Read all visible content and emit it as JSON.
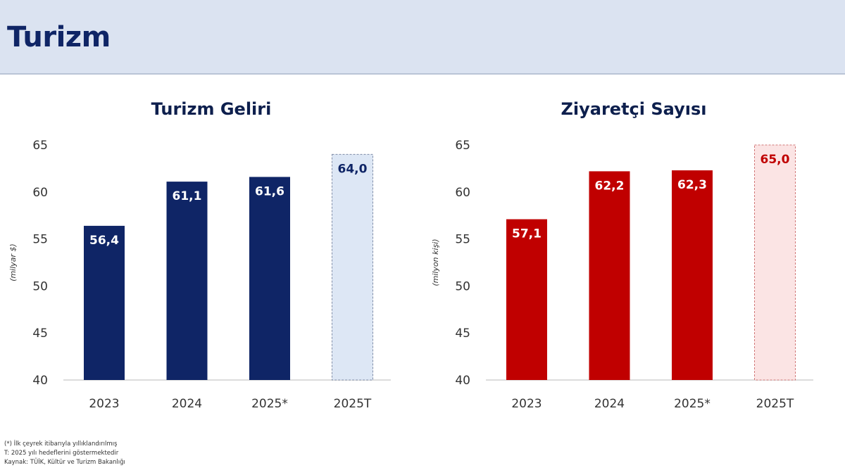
{
  "page": {
    "title": "Turizm"
  },
  "chart_data": [
    {
      "type": "bar",
      "title": "Turizm Geliri",
      "ylabel": "(milyar $)",
      "xlabel": "",
      "categories": [
        "2023",
        "2024",
        "2025*",
        "2025T"
      ],
      "values": [
        56.4,
        61.1,
        61.6,
        64.0
      ],
      "data_labels": [
        "56,4",
        "61,1",
        "61,6",
        "64,0"
      ],
      "target_index": 3,
      "ylim": [
        40,
        65
      ],
      "yticks": [
        40,
        45,
        50,
        55,
        60,
        65
      ],
      "grid": false,
      "colors": {
        "bar": "#0f2566",
        "target_fill": "#dde7f5",
        "target_border": "#7f8ca6",
        "label_on_bar": "#ffffff",
        "label_on_target": "#0f2566"
      }
    },
    {
      "type": "bar",
      "title": "Ziyaretçi Sayısı",
      "ylabel": "(milyon kişi)",
      "xlabel": "",
      "categories": [
        "2023",
        "2024",
        "2025*",
        "2025T"
      ],
      "values": [
        57.1,
        62.2,
        62.3,
        65.0
      ],
      "data_labels": [
        "57,1",
        "62,2",
        "62,3",
        "65,0"
      ],
      "target_index": 3,
      "ylim": [
        40,
        65
      ],
      "yticks": [
        40,
        45,
        50,
        55,
        60,
        65
      ],
      "grid": false,
      "colors": {
        "bar": "#c00000",
        "target_fill": "#fbe4e4",
        "target_border": "#d27878",
        "label_on_bar": "#ffffff",
        "label_on_target": "#c00000"
      }
    }
  ],
  "footnotes": {
    "line1": "(*) İlk çeyrek itibarıyla yıllıklandırılmış",
    "line2": "T: 2025 yılı hedeflerini göstermektedir",
    "line3": "Kaynak: TÜİK, Kültür ve Turizm Bakanlığı"
  }
}
